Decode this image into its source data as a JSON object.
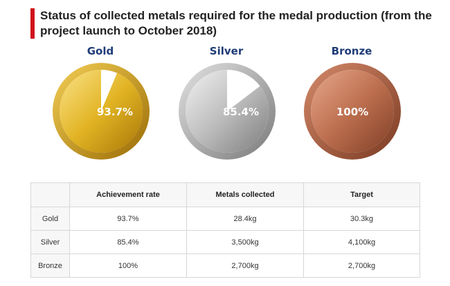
{
  "title": "Status of collected metals required for the medal production (from the project launch to October 2018)",
  "colors": {
    "accent_bar": "#d0101b",
    "label_blue": "#1f3c78",
    "gold": "#d9a50e",
    "silver": "#a9a9a9",
    "bronze": "#b4664a"
  },
  "chart_data": {
    "type": "pie",
    "title": "Status of collected metals required for the medal production (from the project launch to October 2018)",
    "medals": [
      {
        "name": "Gold",
        "percent": 93.7,
        "label": "93.7%",
        "color": "gold"
      },
      {
        "name": "Silver",
        "percent": 85.4,
        "label": "85.4%",
        "color": "silver"
      },
      {
        "name": "Bronze",
        "percent": 100,
        "label": "100%",
        "color": "bronze"
      }
    ]
  },
  "table": {
    "headers": [
      "",
      "Achievement rate",
      "Metals collected",
      "Target"
    ],
    "rows": [
      [
        "Gold",
        "93.7%",
        "28.4kg",
        "30.3kg"
      ],
      [
        "Silver",
        "85.4%",
        "3,500kg",
        "4,100kg"
      ],
      [
        "Bronze",
        "100%",
        "2,700kg",
        "2,700kg"
      ]
    ]
  }
}
